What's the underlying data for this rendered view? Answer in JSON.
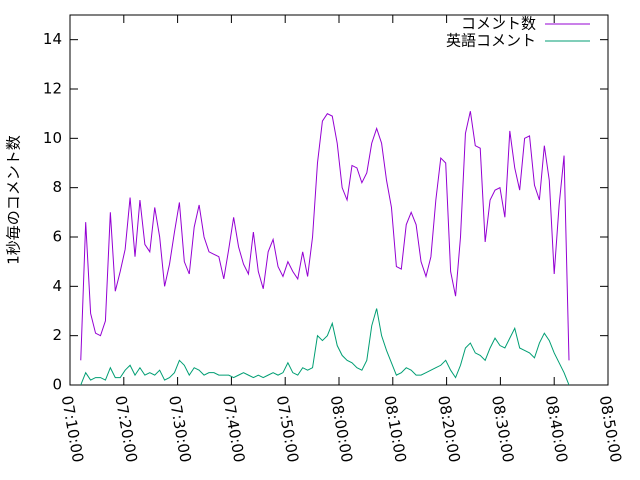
{
  "chart_data": {
    "type": "line",
    "y_label": "1秒毎のコメント数",
    "x": [
      "07:12:00",
      "07:12:55",
      "07:13:50",
      "07:14:45",
      "07:15:40",
      "07:16:35",
      "07:17:30",
      "07:18:25",
      "07:19:20",
      "07:20:15",
      "07:21:10",
      "07:22:05",
      "07:23:00",
      "07:23:55",
      "07:24:50",
      "07:25:45",
      "07:26:40",
      "07:27:35",
      "07:28:30",
      "07:29:25",
      "07:30:20",
      "07:31:15",
      "07:32:10",
      "07:33:05",
      "07:34:00",
      "07:34:55",
      "07:35:50",
      "07:36:45",
      "07:37:40",
      "07:38:35",
      "07:39:30",
      "07:40:25",
      "07:41:20",
      "07:42:15",
      "07:43:10",
      "07:44:05",
      "07:45:00",
      "07:45:55",
      "07:46:50",
      "07:47:45",
      "07:48:40",
      "07:49:35",
      "07:50:30",
      "07:51:25",
      "07:52:20",
      "07:53:15",
      "07:54:10",
      "07:55:05",
      "07:56:00",
      "07:56:55",
      "07:57:50",
      "07:58:45",
      "07:59:40",
      "08:00:35",
      "08:01:30",
      "08:02:25",
      "08:03:20",
      "08:04:15",
      "08:05:10",
      "08:06:05",
      "08:07:00",
      "08:07:55",
      "08:08:50",
      "08:09:45",
      "08:10:40",
      "08:11:35",
      "08:12:30",
      "08:13:25",
      "08:14:20",
      "08:15:15",
      "08:16:10",
      "08:17:05",
      "08:18:00",
      "08:18:55",
      "08:19:50",
      "08:20:45",
      "08:21:40",
      "08:22:35",
      "08:23:30",
      "08:24:25",
      "08:25:20",
      "08:26:15",
      "08:27:10",
      "08:28:05",
      "08:29:00",
      "08:29:55",
      "08:30:50",
      "08:31:45",
      "08:32:40",
      "08:33:35",
      "08:34:30",
      "08:35:25",
      "08:36:20",
      "08:37:15",
      "08:38:10",
      "08:39:05",
      "08:40:00",
      "08:40:55",
      "08:41:50",
      "08:42:45"
    ],
    "series": [
      {
        "name": "コメント数",
        "color": "#9400d3",
        "values": [
          1.0,
          6.6,
          2.9,
          2.1,
          2.0,
          2.6,
          7.0,
          3.8,
          4.6,
          5.5,
          7.6,
          5.2,
          7.5,
          5.7,
          5.4,
          7.2,
          6.0,
          4.0,
          4.9,
          6.2,
          7.4,
          5.0,
          4.5,
          6.4,
          7.3,
          6.0,
          5.4,
          5.3,
          5.2,
          4.3,
          5.5,
          6.8,
          5.6,
          4.9,
          4.5,
          6.2,
          4.6,
          3.9,
          5.4,
          5.9,
          4.8,
          4.4,
          5.0,
          4.6,
          4.3,
          5.4,
          4.4,
          6.0,
          9.0,
          10.7,
          11.0,
          10.9,
          9.8,
          8.0,
          7.5,
          8.9,
          8.8,
          8.2,
          8.6,
          9.8,
          10.4,
          9.8,
          8.3,
          7.2,
          4.8,
          4.7,
          6.5,
          7.0,
          6.5,
          5.0,
          4.4,
          5.2,
          7.5,
          9.2,
          9.0,
          4.6,
          3.6,
          6.0,
          10.2,
          11.1,
          9.7,
          9.6,
          5.8,
          7.5,
          7.9,
          8.0,
          6.8,
          10.3,
          8.8,
          7.9,
          10.0,
          10.1,
          8.1,
          7.5,
          9.7,
          8.3,
          4.5,
          7.3,
          9.3,
          1.0
        ]
      },
      {
        "name": "英語コメント",
        "color": "#009e73",
        "values": [
          0.0,
          0.5,
          0.2,
          0.3,
          0.3,
          0.2,
          0.7,
          0.3,
          0.3,
          0.6,
          0.8,
          0.4,
          0.7,
          0.4,
          0.5,
          0.4,
          0.6,
          0.2,
          0.3,
          0.5,
          1.0,
          0.8,
          0.4,
          0.7,
          0.6,
          0.4,
          0.5,
          0.5,
          0.4,
          0.4,
          0.4,
          0.3,
          0.4,
          0.5,
          0.4,
          0.3,
          0.4,
          0.3,
          0.4,
          0.5,
          0.4,
          0.5,
          0.9,
          0.5,
          0.4,
          0.7,
          0.6,
          0.7,
          2.0,
          1.8,
          2.0,
          2.5,
          1.6,
          1.2,
          1.0,
          0.9,
          0.7,
          0.6,
          1.0,
          2.4,
          3.1,
          2.0,
          1.4,
          0.9,
          0.4,
          0.5,
          0.7,
          0.6,
          0.4,
          0.4,
          0.5,
          0.6,
          0.7,
          0.8,
          1.0,
          0.6,
          0.3,
          0.8,
          1.5,
          1.7,
          1.3,
          1.2,
          1.0,
          1.5,
          1.9,
          1.6,
          1.5,
          1.9,
          2.3,
          1.5,
          1.4,
          1.3,
          1.1,
          1.7,
          2.1,
          1.8,
          1.3,
          0.9,
          0.5,
          0.0
        ]
      }
    ],
    "xlim": [
      "07:10:00",
      "08:50:00"
    ],
    "xticks": [
      "07:10:00",
      "07:20:00",
      "07:30:00",
      "07:40:00",
      "07:50:00",
      "08:00:00",
      "08:10:00",
      "08:20:00",
      "08:30:00",
      "08:40:00",
      "08:50:00"
    ],
    "ylim": [
      0,
      15
    ],
    "yticks": [
      0,
      2,
      4,
      6,
      8,
      10,
      12,
      14
    ],
    "legend": "top-right"
  }
}
